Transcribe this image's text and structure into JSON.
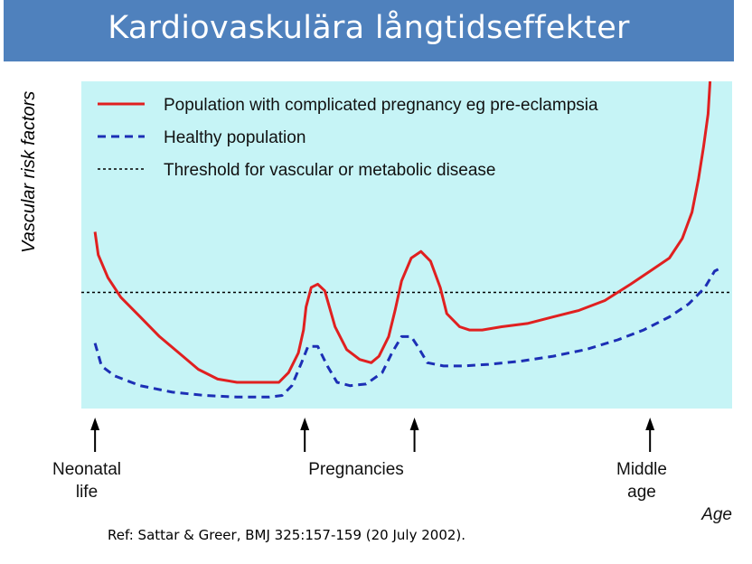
{
  "header": {
    "title": "Kardiovaskulära långtidseffekter"
  },
  "reference": "Ref: Sattar & Greer, BMJ 325:157-159 (20 July 2002).",
  "chart_data": {
    "type": "line",
    "ylabel": "Vascular risk factors",
    "xlabel": "Age",
    "legend_position": "top-left",
    "grid": false,
    "xlim": [
      0,
      100
    ],
    "ylim": [
      0,
      100
    ],
    "events": [
      {
        "label_lines": [
          "Neonatal",
          "life"
        ],
        "x": 1
      },
      {
        "label_lines": [
          "Pregnancies"
        ],
        "x": 33.5
      },
      {
        "label_lines": [],
        "x": 50.5
      },
      {
        "label_lines": [
          "Middle",
          "age"
        ],
        "x": 87
      }
    ],
    "threshold": {
      "name": "Threshold for vascular or metabolic disease",
      "y": 35.5,
      "color": "#000000",
      "style": "dotted"
    },
    "series": [
      {
        "name": "Population with complicated pregnancy eg pre-eclampsia",
        "color": "#e02020",
        "style": "solid",
        "points": [
          [
            1,
            54
          ],
          [
            1.5,
            47
          ],
          [
            3,
            40
          ],
          [
            5,
            34
          ],
          [
            8,
            28
          ],
          [
            11,
            22
          ],
          [
            14,
            17
          ],
          [
            17,
            12
          ],
          [
            20,
            9
          ],
          [
            23,
            8
          ],
          [
            26,
            8
          ],
          [
            28,
            8
          ],
          [
            29.5,
            8
          ],
          [
            31,
            11
          ],
          [
            32.5,
            17
          ],
          [
            33.3,
            24
          ],
          [
            33.7,
            31
          ],
          [
            34.5,
            37
          ],
          [
            35.5,
            38
          ],
          [
            36.6,
            36
          ],
          [
            38.2,
            25
          ],
          [
            40,
            18
          ],
          [
            42,
            15
          ],
          [
            43.8,
            14
          ],
          [
            45,
            16
          ],
          [
            46.5,
            22
          ],
          [
            47.5,
            30
          ],
          [
            48.5,
            39
          ],
          [
            50,
            46
          ],
          [
            51.5,
            48
          ],
          [
            53,
            45
          ],
          [
            54.5,
            37
          ],
          [
            55.5,
            29
          ],
          [
            57.5,
            25
          ],
          [
            59,
            24
          ],
          [
            61,
            24
          ],
          [
            64,
            25
          ],
          [
            68,
            26
          ],
          [
            72,
            28
          ],
          [
            76,
            30
          ],
          [
            80,
            33
          ],
          [
            84,
            38
          ],
          [
            87,
            42
          ],
          [
            90,
            46
          ],
          [
            92,
            52
          ],
          [
            93.5,
            60
          ],
          [
            94.5,
            70
          ],
          [
            95.3,
            80
          ],
          [
            96,
            90
          ],
          [
            96.3,
            100
          ]
        ]
      },
      {
        "name": "Healthy population",
        "color": "#1c2fb5",
        "style": "dashed",
        "points": [
          [
            1,
            20
          ],
          [
            2,
            13
          ],
          [
            4,
            10
          ],
          [
            8,
            7
          ],
          [
            13,
            5
          ],
          [
            18,
            4
          ],
          [
            23,
            3.5
          ],
          [
            28,
            3.5
          ],
          [
            30,
            4
          ],
          [
            31.5,
            7
          ],
          [
            33,
            14
          ],
          [
            34,
            19
          ],
          [
            35.5,
            19
          ],
          [
            37,
            13
          ],
          [
            38.5,
            8
          ],
          [
            40.5,
            7
          ],
          [
            43,
            7.5
          ],
          [
            45.5,
            11
          ],
          [
            47,
            17
          ],
          [
            48.5,
            22
          ],
          [
            50,
            22
          ],
          [
            51,
            19
          ],
          [
            52.5,
            14
          ],
          [
            55,
            13
          ],
          [
            58,
            13
          ],
          [
            62,
            13.5
          ],
          [
            67,
            14.5
          ],
          [
            72,
            16
          ],
          [
            77,
            18
          ],
          [
            82,
            21
          ],
          [
            86,
            24
          ],
          [
            90,
            28
          ],
          [
            93,
            32
          ],
          [
            95.5,
            37
          ],
          [
            97,
            42
          ],
          [
            98,
            43
          ]
        ]
      }
    ]
  }
}
